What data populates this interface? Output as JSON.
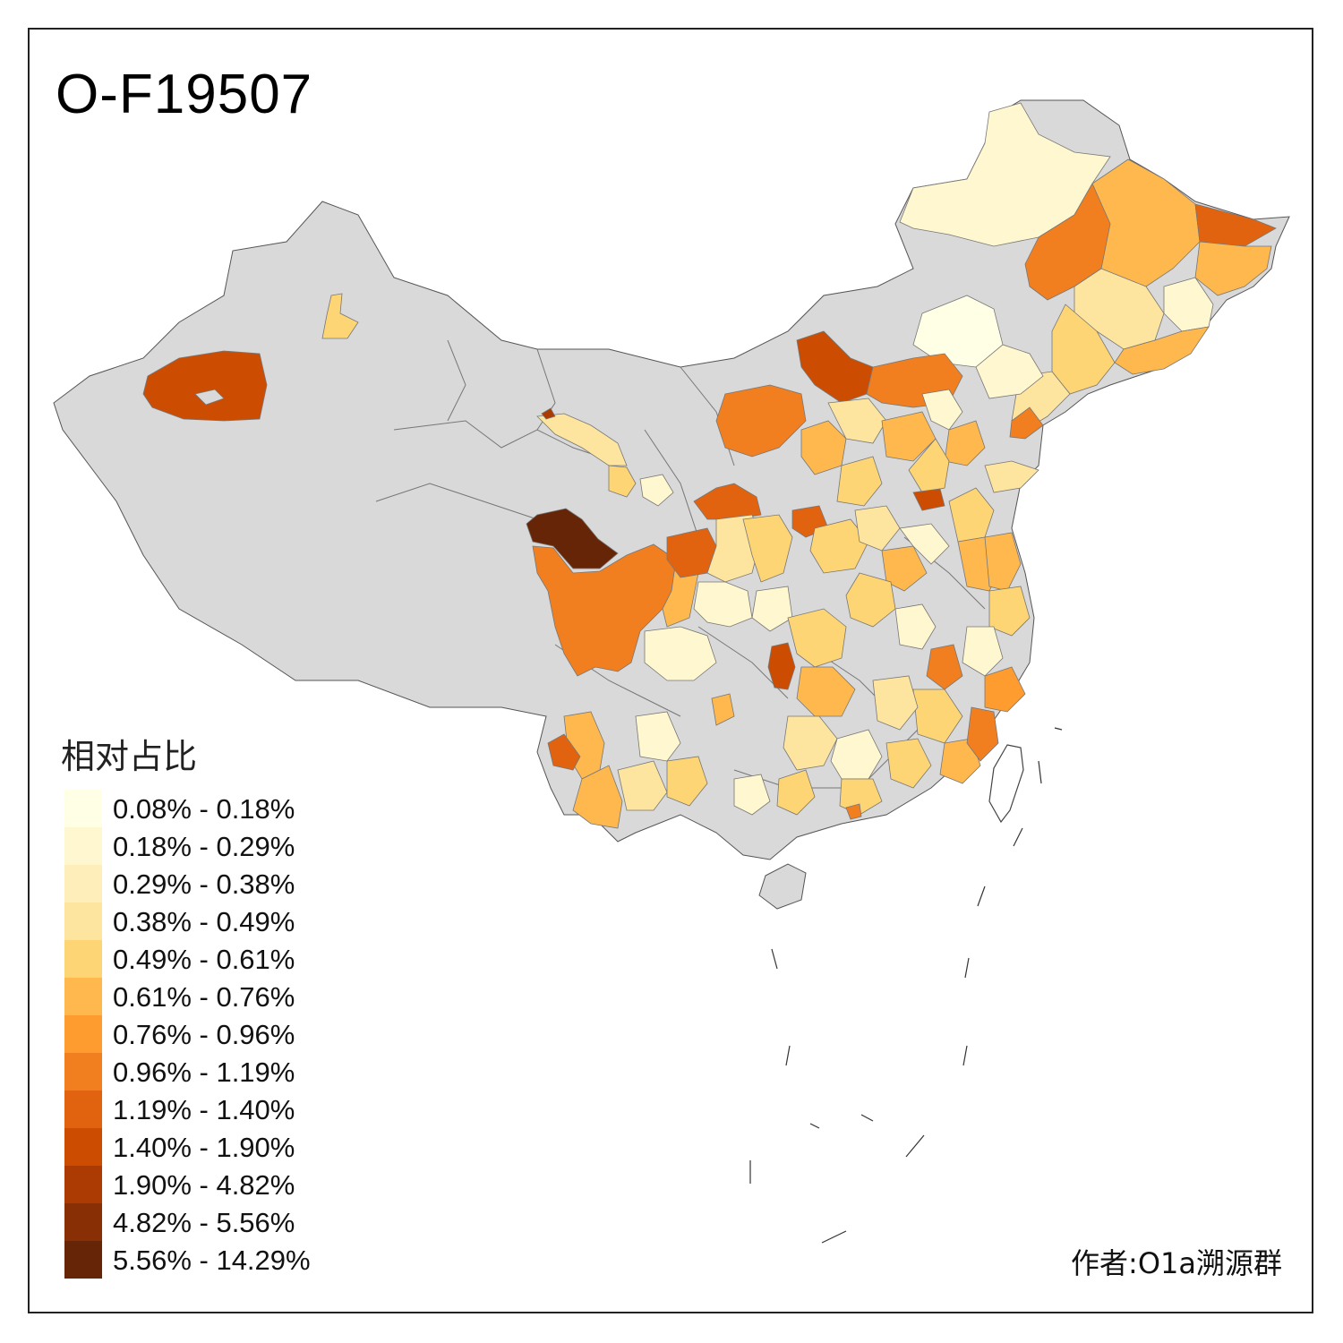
{
  "title": "O-F19507",
  "legend": {
    "title": "相对占比",
    "items": [
      {
        "label": "0.08% - 0.18%",
        "color": "#ffffe5"
      },
      {
        "label": "0.18% - 0.29%",
        "color": "#fff7cf"
      },
      {
        "label": "0.29% - 0.38%",
        "color": "#feeeba"
      },
      {
        "label": "0.38% - 0.49%",
        "color": "#fee59f"
      },
      {
        "label": "0.49% - 0.61%",
        "color": "#fed574"
      },
      {
        "label": "0.61% - 0.76%",
        "color": "#feb84d"
      },
      {
        "label": "0.76% - 0.96%",
        "color": "#fe9c30"
      },
      {
        "label": "0.96% - 1.19%",
        "color": "#f17f20"
      },
      {
        "label": "1.19% - 1.40%",
        "color": "#e2630f"
      },
      {
        "label": "1.40% - 1.90%",
        "color": "#cc4c02"
      },
      {
        "label": "1.90% - 4.82%",
        "color": "#ab3b03"
      },
      {
        "label": "4.82% - 5.56%",
        "color": "#882f05"
      },
      {
        "label": "5.56% - 14.29%",
        "color": "#662506"
      }
    ]
  },
  "author": "作者:O1a溯源群",
  "colors": {
    "no_data": "#d9d9d9",
    "boundary": "#555555",
    "frame": "#222222"
  }
}
